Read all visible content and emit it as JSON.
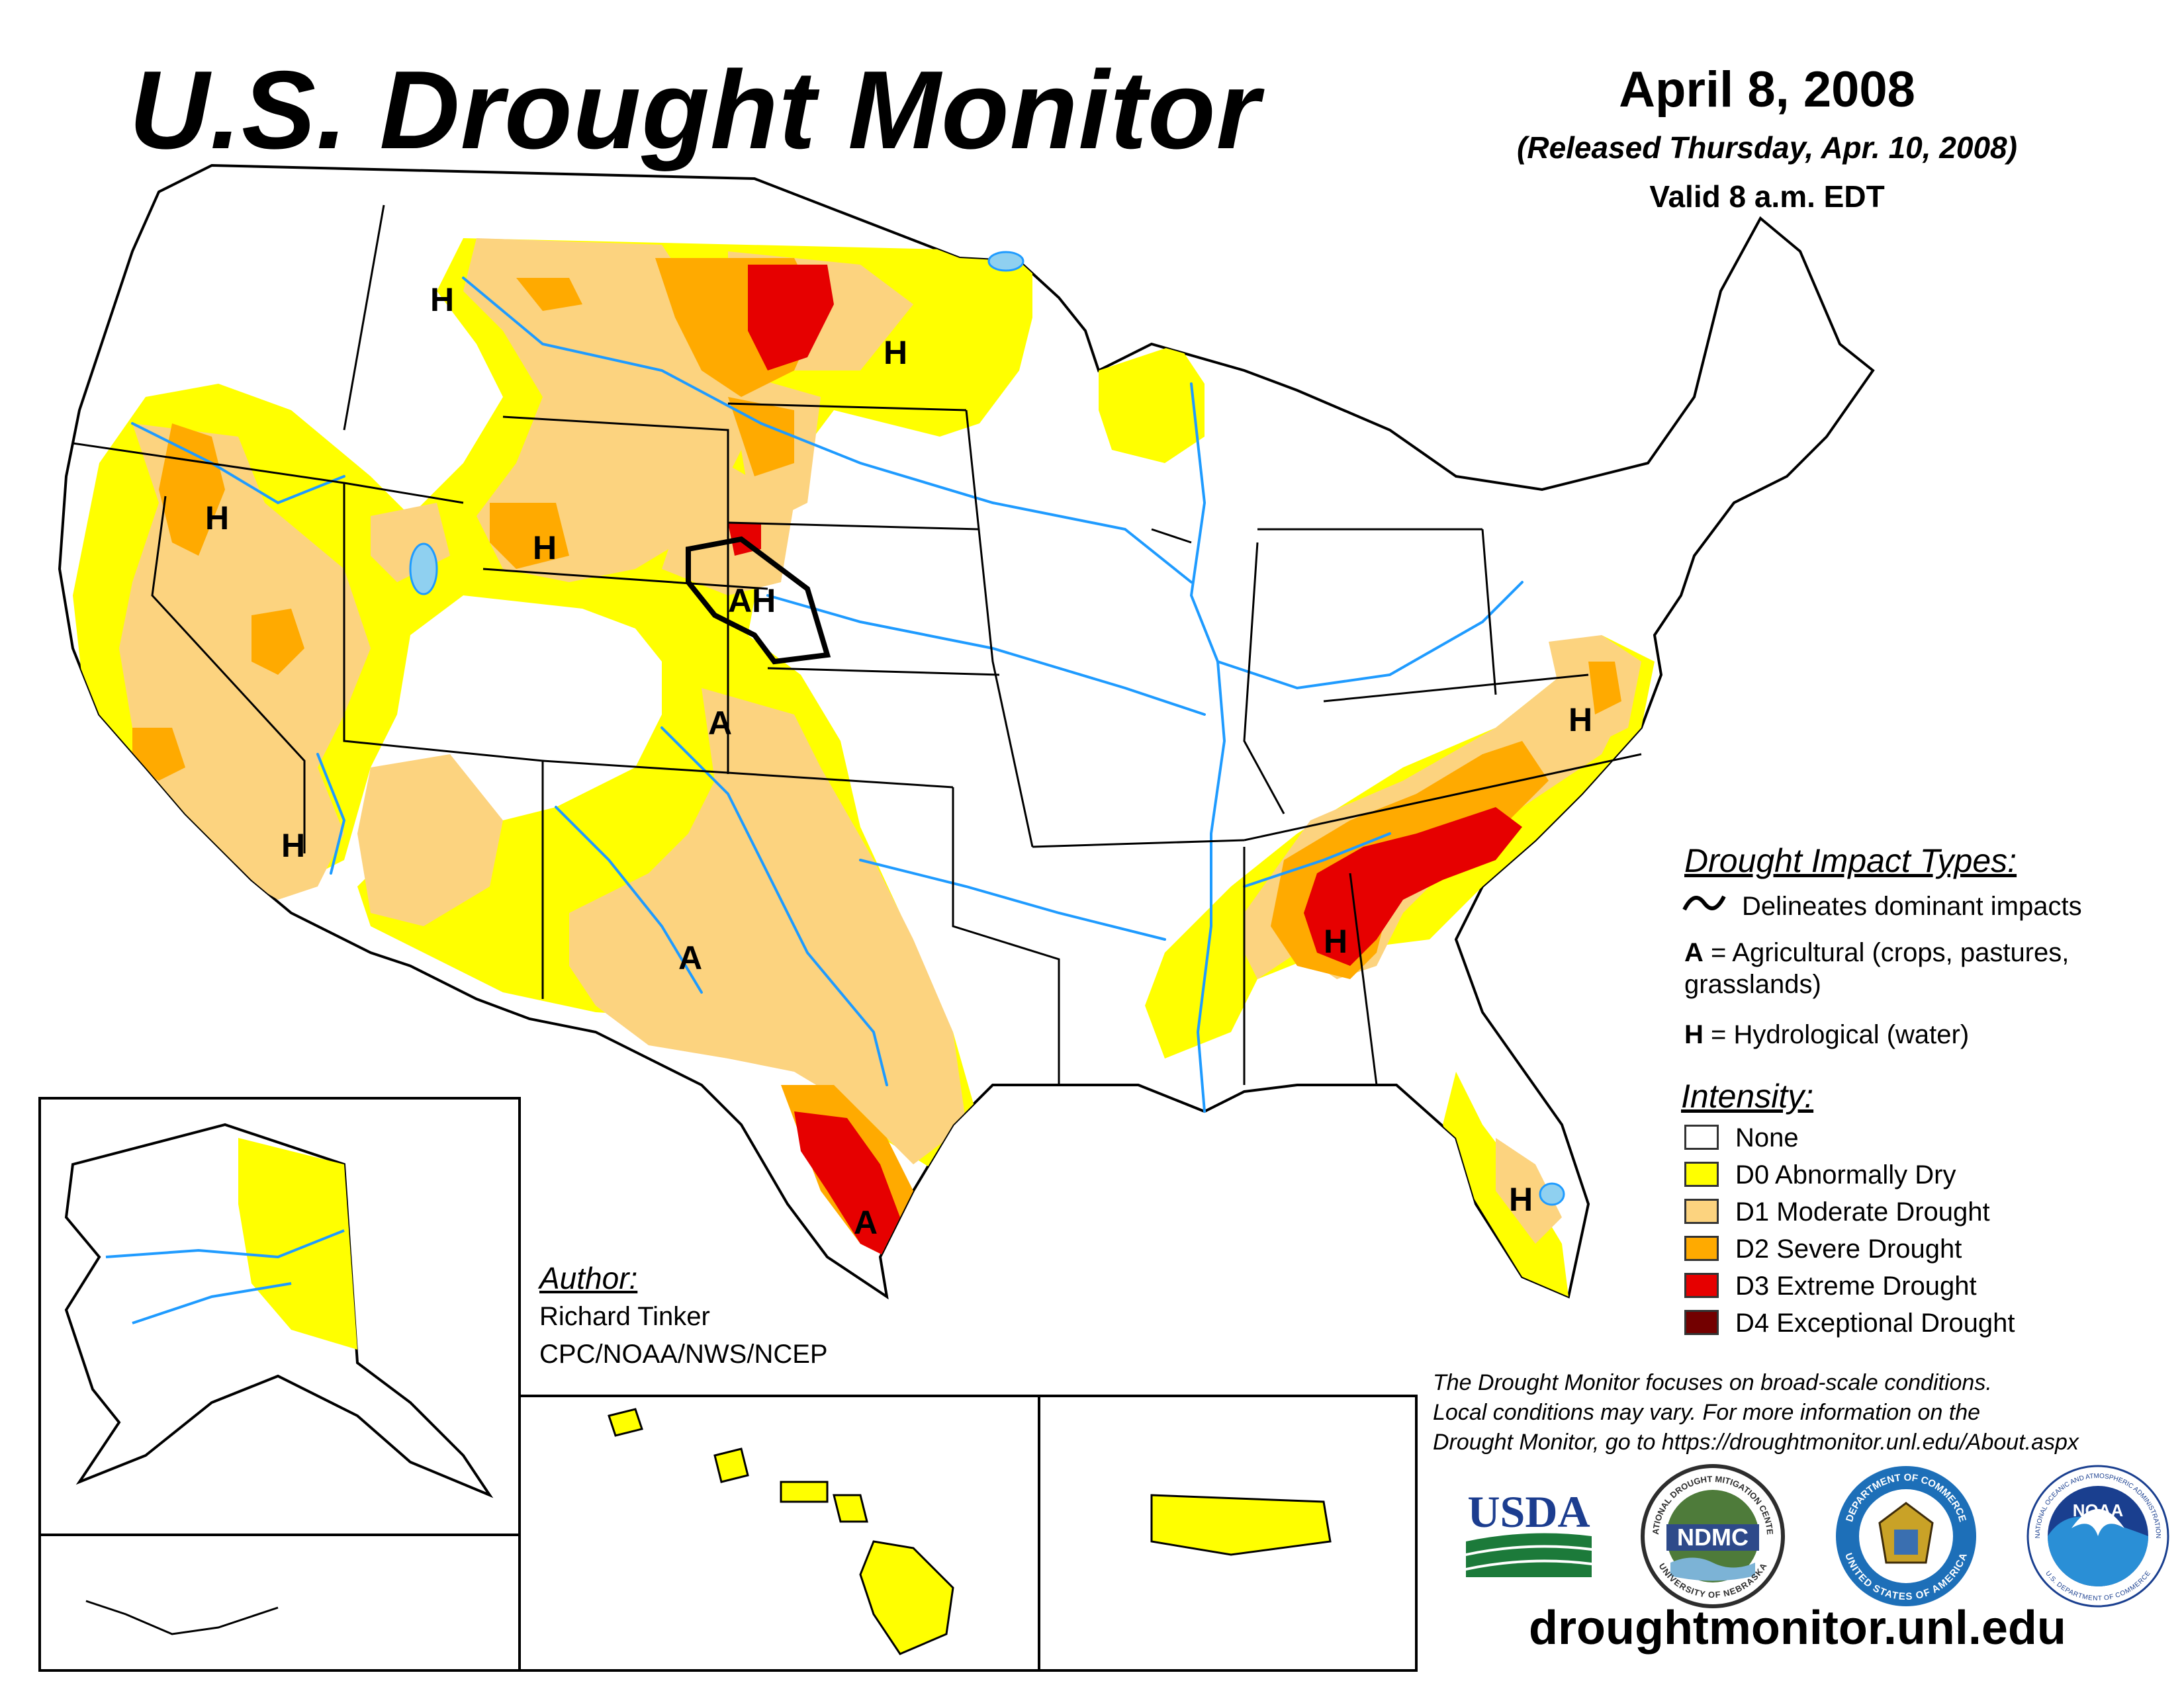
{
  "header": {
    "title": "U.S. Drought Monitor",
    "date": "April 8, 2008",
    "released": "(Released Thursday, Apr. 10, 2008)",
    "valid": "Valid 8 a.m. EDT"
  },
  "impact_types": {
    "heading": "Drought Impact Types:",
    "delineates": "Delineates dominant impacts",
    "agricultural_code": "A",
    "agricultural_text": "= Agricultural (crops, pastures,",
    "agricultural_text2": "grasslands)",
    "hydrological_code": "H",
    "hydrological_text": "= Hydrological (water)"
  },
  "intensity": {
    "heading": "Intensity:",
    "items": [
      {
        "label": "None",
        "color": "#ffffff"
      },
      {
        "label": "D0 Abnormally Dry",
        "color": "#ffff00"
      },
      {
        "label": "D1 Moderate Drought",
        "color": "#fcd37f"
      },
      {
        "label": "D2 Severe Drought",
        "color": "#ffaa00"
      },
      {
        "label": "D3 Extreme Drought",
        "color": "#e60000"
      },
      {
        "label": "D4 Exceptional Drought",
        "color": "#730000"
      }
    ]
  },
  "author": {
    "label": "Author:",
    "name": "Richard Tinker",
    "org": "CPC/NOAA/NWS/NCEP"
  },
  "disclaimer": {
    "line1": "The Drought Monitor focuses on broad-scale conditions.",
    "line2": "Local conditions may vary. For more information on the",
    "line3": "Drought Monitor, go to https://droughtmonitor.unl.edu/About.aspx"
  },
  "website": "droughtmonitor.unl.edu",
  "logos": {
    "usda": "USDA",
    "ndmc": "NDMC",
    "ndmc_ring_top": "NATIONAL DROUGHT MITIGATION CENTER",
    "ndmc_ring_bottom": "UNIVERSITY OF NEBRASKA",
    "noaa": "NOAA",
    "doc_ring_top": "DEPARTMENT OF COMMERCE",
    "doc_ring_bottom": "UNITED STATES OF AMERICA",
    "noaa_ring_top": "NATIONAL OCEANIC AND ATMOSPHERIC ADMINISTRATION",
    "noaa_ring_bottom": "U.S. DEPARTMENT OF COMMERCE"
  },
  "map_labels": [
    "H",
    "H",
    "H",
    "H",
    "AH",
    "A",
    "A",
    "A",
    "H",
    "H",
    "H",
    "H"
  ],
  "colors": {
    "d0": "#ffff00",
    "d1": "#fcd37f",
    "d2": "#ffaa00",
    "d3": "#e60000",
    "river": "#1f9bff",
    "lake": "#8fd0f0",
    "border": "#000000"
  }
}
